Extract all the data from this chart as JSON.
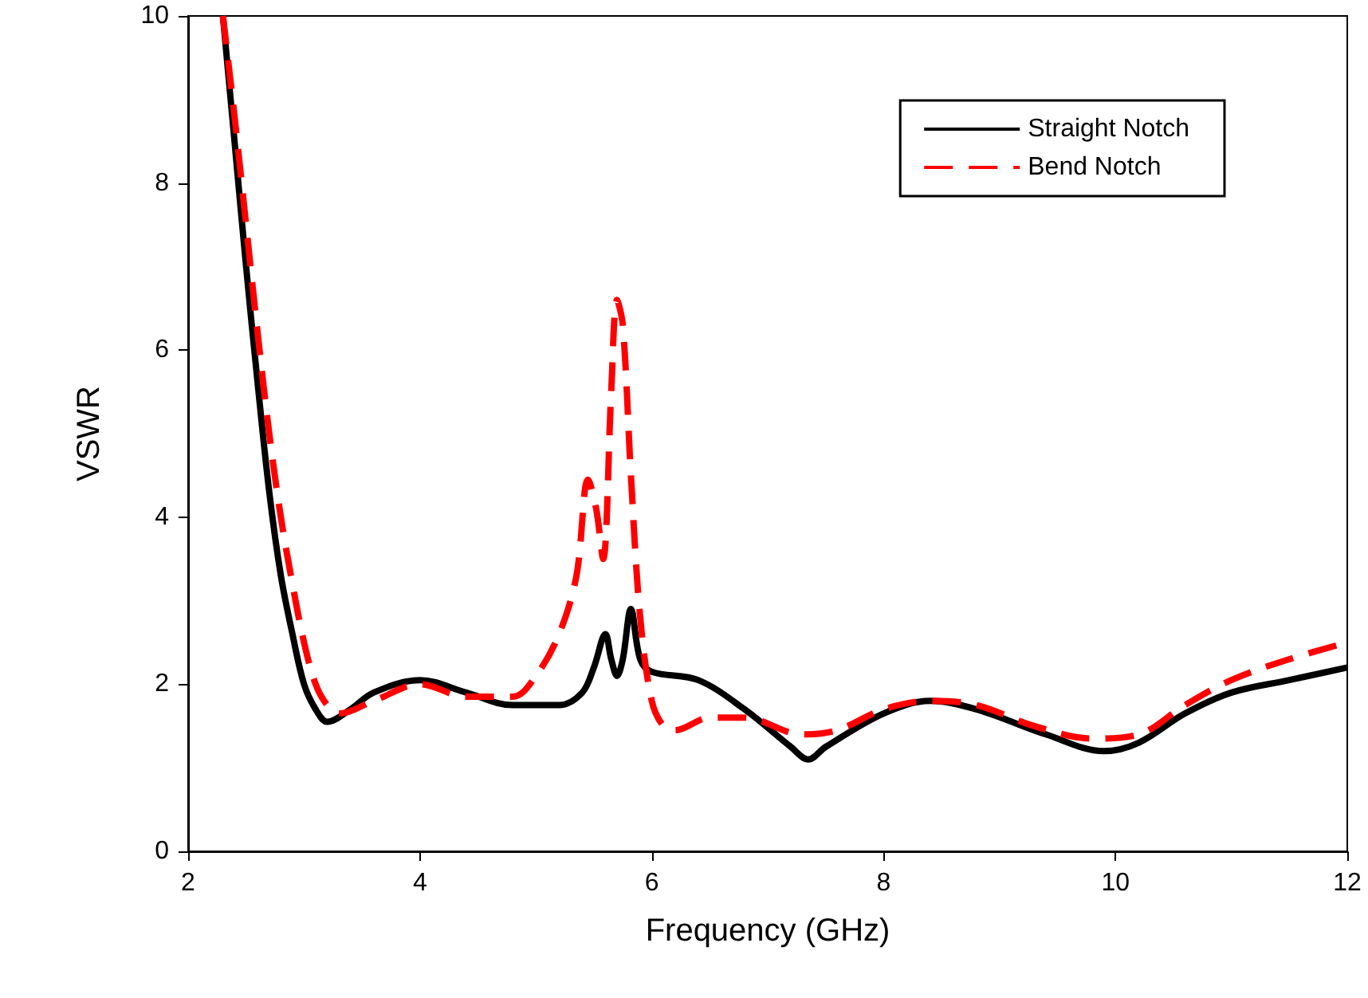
{
  "chart_data": {
    "type": "line",
    "xlabel": "Frequency (GHz)",
    "ylabel": "VSWR",
    "xlim": [
      2,
      12
    ],
    "xticks": [
      2,
      4,
      6,
      8,
      10,
      12
    ],
    "ylim": [
      0,
      10
    ],
    "yticks": [
      0,
      2,
      4,
      6,
      8,
      10
    ],
    "grid": false,
    "legend": "top right",
    "marker": "none",
    "series": [
      {
        "name": "Straight Notch",
        "color": "#000000",
        "line_style": "solid",
        "x": [
          2.3,
          2.4,
          2.5,
          2.6,
          2.7,
          2.8,
          2.9,
          3.0,
          3.1,
          3.2,
          3.4,
          3.6,
          4.0,
          4.4,
          4.8,
          5.2,
          5.4,
          5.5,
          5.6,
          5.65,
          5.7,
          5.75,
          5.82,
          5.9,
          6.0,
          6.4,
          6.8,
          7.2,
          7.35,
          7.5,
          8.0,
          8.4,
          8.8,
          9.4,
          9.9,
          10.2,
          10.6,
          11.0,
          11.5,
          12
        ],
        "values": [
          10,
          8.5,
          7,
          5.6,
          4.3,
          3.3,
          2.6,
          2.0,
          1.7,
          1.55,
          1.7,
          1.9,
          2.05,
          1.9,
          1.75,
          1.75,
          1.9,
          2.2,
          2.6,
          2.3,
          2.1,
          2.3,
          2.9,
          2.3,
          2.15,
          2.05,
          1.7,
          1.25,
          1.1,
          1.25,
          1.65,
          1.8,
          1.7,
          1.4,
          1.2,
          1.3,
          1.65,
          1.9,
          2.05,
          2.2
        ]
      },
      {
        "name": "Bend Notch",
        "color": "#ff0000",
        "line_style": "dashed",
        "x": [
          2.3,
          2.4,
          2.5,
          2.6,
          2.7,
          2.8,
          2.9,
          3.0,
          3.1,
          3.2,
          3.3,
          3.6,
          4.0,
          4.4,
          4.8,
          5.0,
          5.2,
          5.35,
          5.45,
          5.52,
          5.58,
          5.65,
          5.7,
          5.75,
          5.82,
          5.9,
          6.0,
          6.1,
          6.2,
          6.5,
          6.8,
          7.3,
          7.6,
          8.0,
          8.4,
          8.8,
          9.3,
          9.8,
          10.2,
          10.6,
          11.0,
          11.5,
          12
        ],
        "values": [
          10,
          8.8,
          7.5,
          6.2,
          5.0,
          4.0,
          3.2,
          2.5,
          2.0,
          1.75,
          1.65,
          1.8,
          2.0,
          1.85,
          1.85,
          2.1,
          2.6,
          3.3,
          4.45,
          4.1,
          3.5,
          5.5,
          6.6,
          6.3,
          4.5,
          2.8,
          1.8,
          1.5,
          1.45,
          1.6,
          1.6,
          1.4,
          1.45,
          1.7,
          1.8,
          1.75,
          1.5,
          1.35,
          1.4,
          1.75,
          2.05,
          2.3,
          2.5
        ]
      }
    ]
  }
}
